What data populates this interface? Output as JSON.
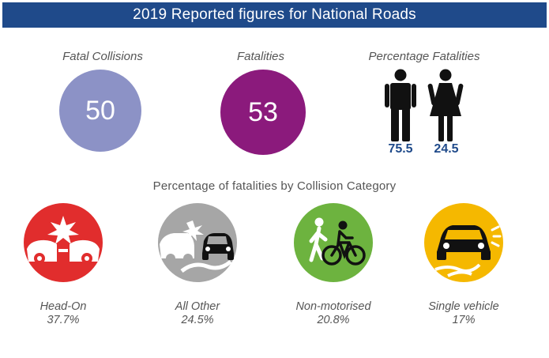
{
  "header": {
    "title": "2019 Reported figures for National Roads"
  },
  "stats": {
    "fatal_collisions": {
      "label": "Fatal Collisions",
      "value": "50",
      "color": "#8c92c6"
    },
    "fatalities": {
      "label": "Fatalities",
      "value": "53",
      "color": "#8b1a7c"
    },
    "percentage_fatalities": {
      "label": "Percentage Fatalities",
      "male": {
        "value": "75.5",
        "icon": "male-figure-icon"
      },
      "female": {
        "value": "24.5",
        "icon": "female-figure-icon"
      }
    }
  },
  "categories_section": {
    "title": "Percentage of fatalities by Collision Category",
    "items": [
      {
        "label": "Head-On",
        "value": "37.7%",
        "icon": "head-on-collision-icon",
        "color": "#e12d2d"
      },
      {
        "label": "All Other",
        "value": "24.5%",
        "icon": "other-collision-icon",
        "color": "#a6a6a6"
      },
      {
        "label": "Non-motorised",
        "value": "20.8%",
        "icon": "pedestrian-cyclist-icon",
        "color": "#6db33f"
      },
      {
        "label": "Single vehicle",
        "value": "17%",
        "icon": "skidding-car-icon",
        "color": "#f5b800"
      }
    ]
  }
}
